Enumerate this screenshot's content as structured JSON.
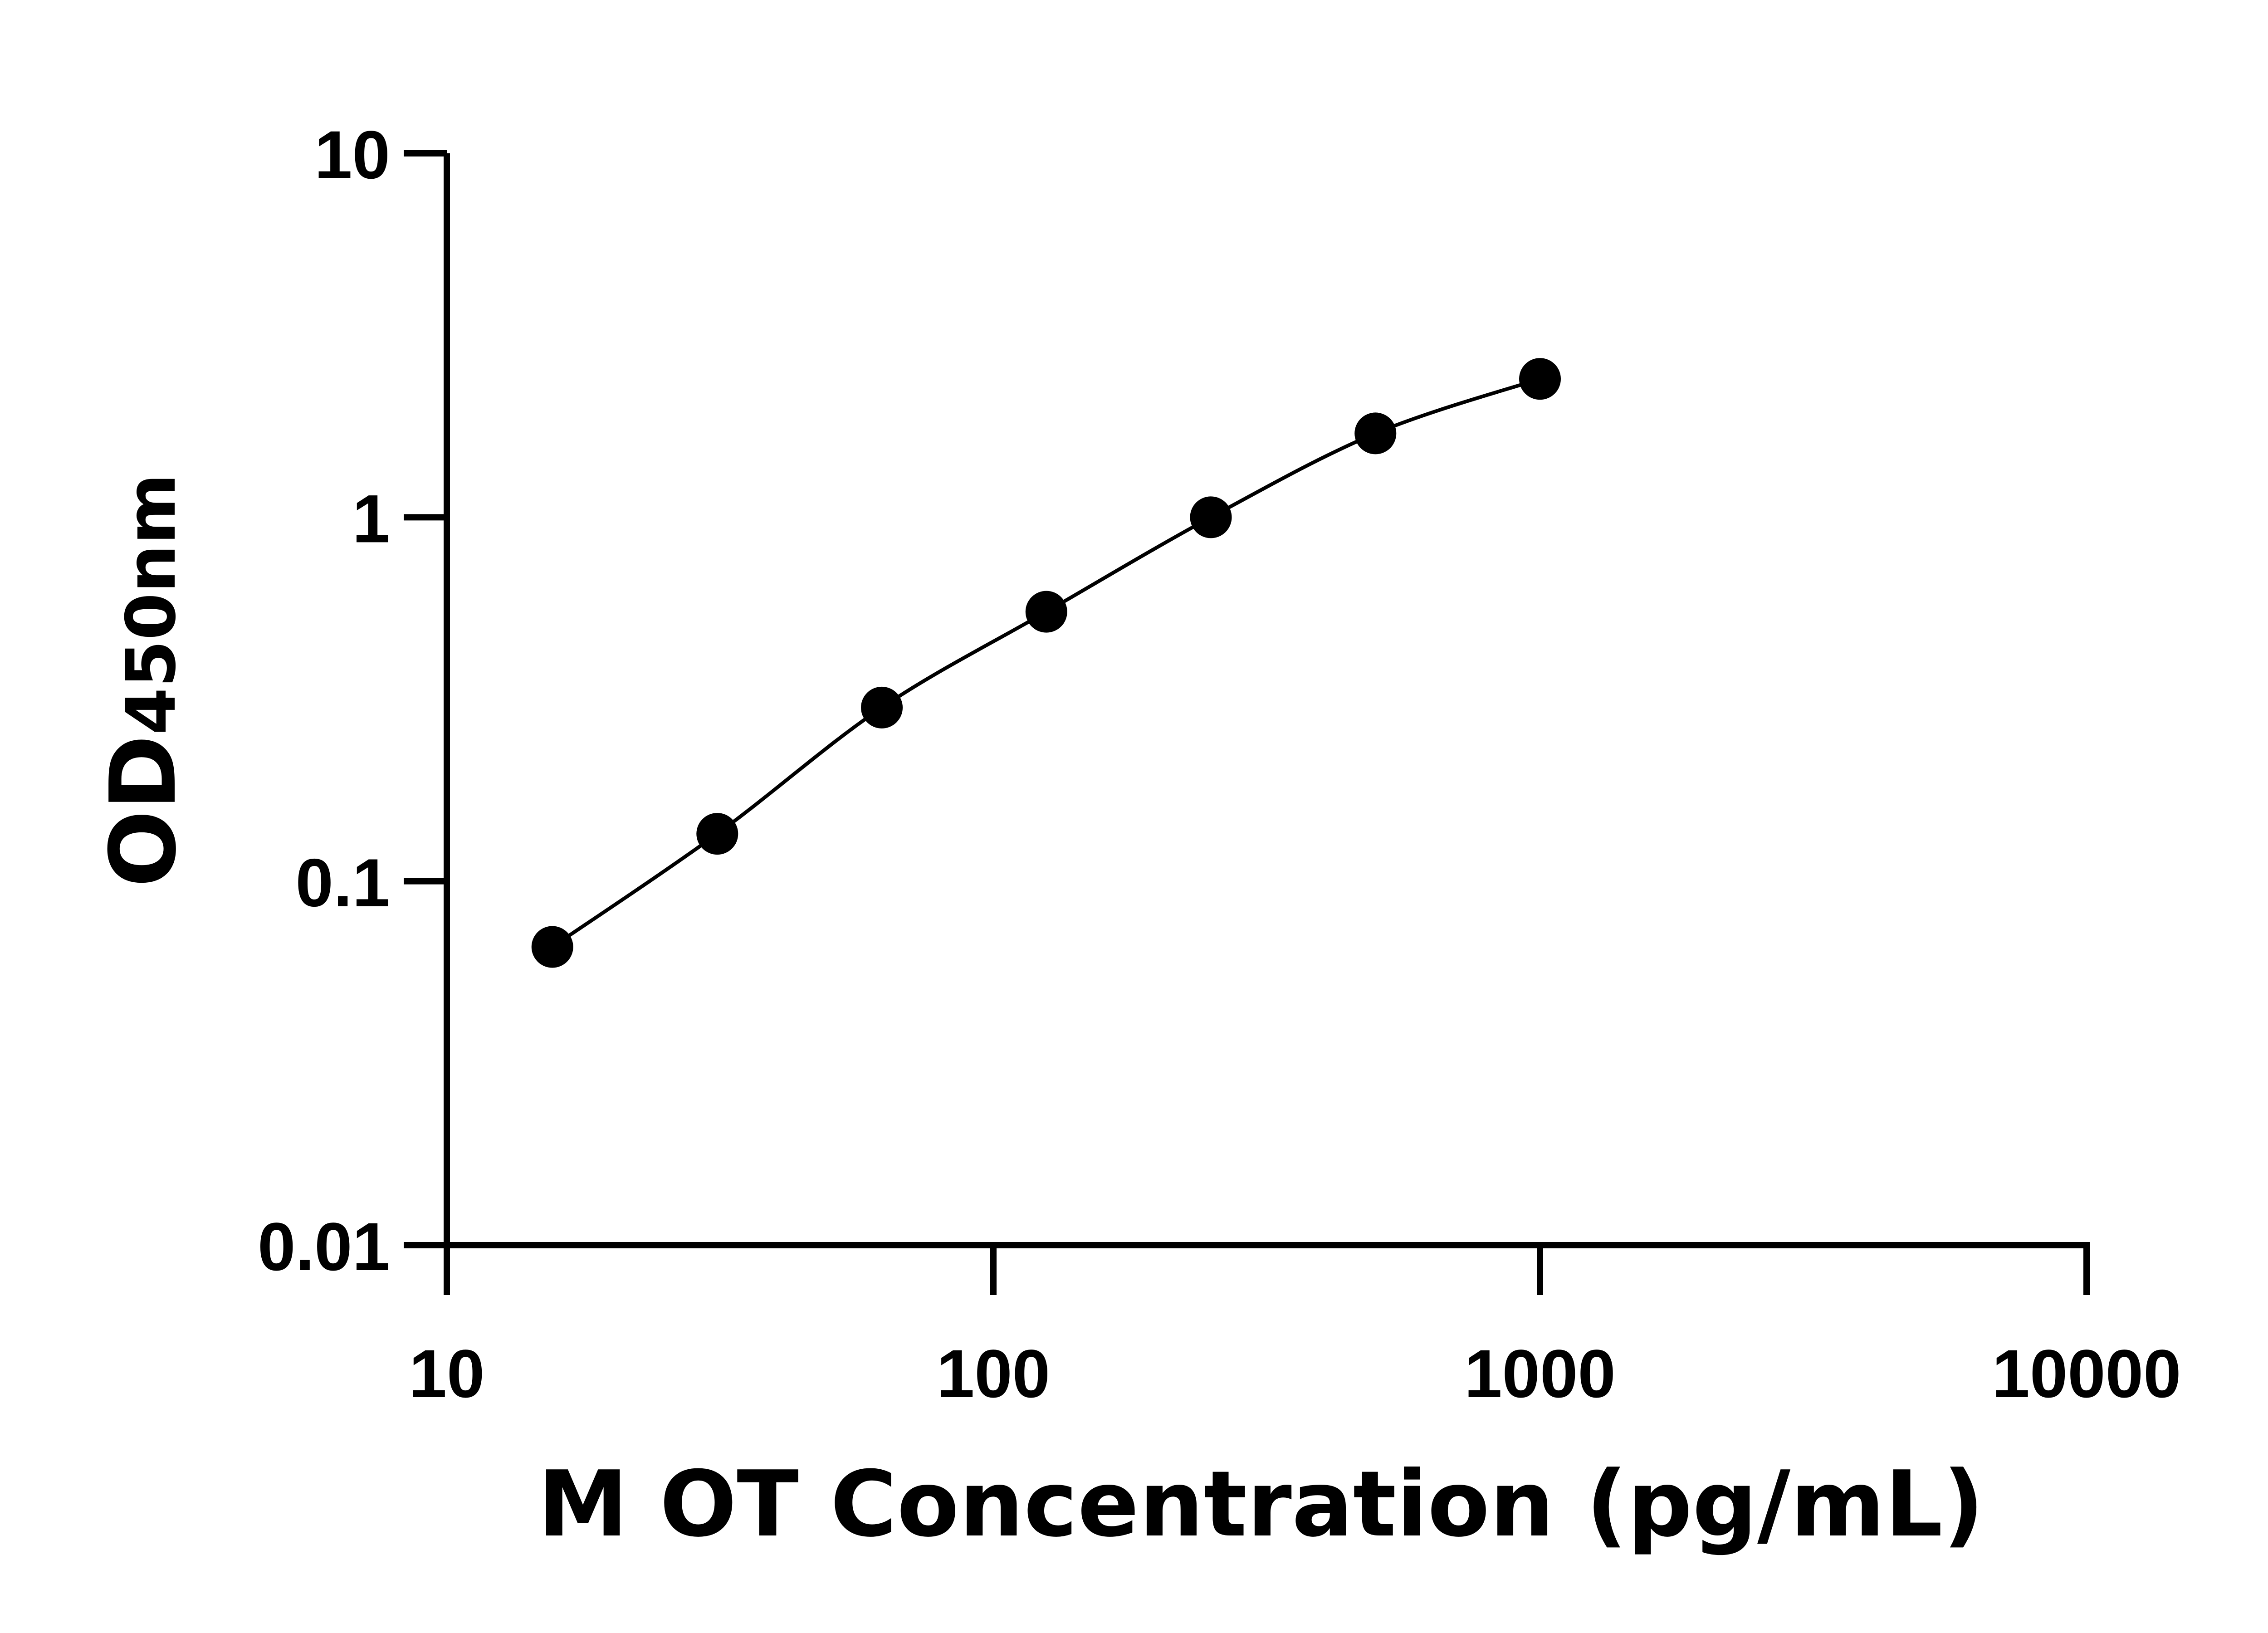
{
  "chart_data": {
    "type": "scatter",
    "title": "",
    "xlabel": "M OT Concentration (pg/mL)",
    "ylabel": "OD",
    "ylabel_subscript": "450nm",
    "x_scale": "log",
    "y_scale": "log",
    "xlim": [
      10,
      10000
    ],
    "ylim": [
      0.01,
      10
    ],
    "x_ticks": [
      "10",
      "100",
      "1000",
      "10000"
    ],
    "y_ticks": [
      "0.01",
      "0.1",
      "1",
      "10"
    ],
    "grid": false,
    "legend": "none",
    "curve": "fitted smooth line through points",
    "series": [
      {
        "x": [
          15.6,
          31.25,
          62.5,
          125,
          250,
          500,
          1000
        ],
        "y": [
          0.066,
          0.135,
          0.3,
          0.55,
          1.0,
          1.7,
          2.4
        ]
      }
    ]
  },
  "colors": {
    "ink": "#000000",
    "background": "#ffffff"
  }
}
